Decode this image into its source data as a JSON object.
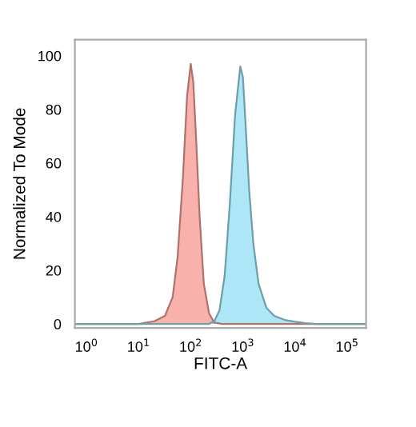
{
  "chart_data": {
    "type": "area",
    "xlabel": "FITC-A",
    "ylabel": "Normalized To Mode",
    "log": "x",
    "xlim": [
      0.6,
      230000
    ],
    "ylim": [
      -1.5,
      106
    ],
    "xticks": [
      {
        "value": 1,
        "label": "10$^{0}$"
      },
      {
        "value": 10,
        "label": "10$^{1}$"
      },
      {
        "value": 100,
        "label": "10$^{2}$"
      },
      {
        "value": 1000,
        "label": "10$^{3}$"
      },
      {
        "value": 10000,
        "label": "10$^{4}$"
      },
      {
        "value": 100000,
        "label": "10$^{5}$"
      }
    ],
    "yticks": [
      0,
      20,
      40,
      60,
      80,
      100
    ],
    "grid": false,
    "legend": false,
    "series": [
      {
        "color": "#f8a39c",
        "x": [
          0.6,
          10,
          20,
          32,
          45,
          56,
          71,
          85,
          100,
          112,
          126,
          148,
          178,
          224,
          282,
          400,
          230000
        ],
        "values": [
          0,
          0,
          1,
          3,
          10,
          25,
          55,
          85,
          97,
          90,
          70,
          40,
          15,
          4,
          0.5,
          0,
          0
        ]
      },
      {
        "color": "#9fe2f4",
        "x": [
          0.6,
          224,
          282,
          355,
          447,
          562,
          708,
          891,
          1000,
          1122,
          1318,
          1585,
          1995,
          2818,
          3981,
          6310,
          10000,
          15849,
          25119,
          230000
        ],
        "values": [
          0,
          0,
          1,
          5,
          18,
          45,
          78,
          96,
          92,
          75,
          50,
          30,
          15,
          6,
          3,
          1.5,
          0.8,
          0.3,
          0,
          0
        ]
      }
    ]
  }
}
